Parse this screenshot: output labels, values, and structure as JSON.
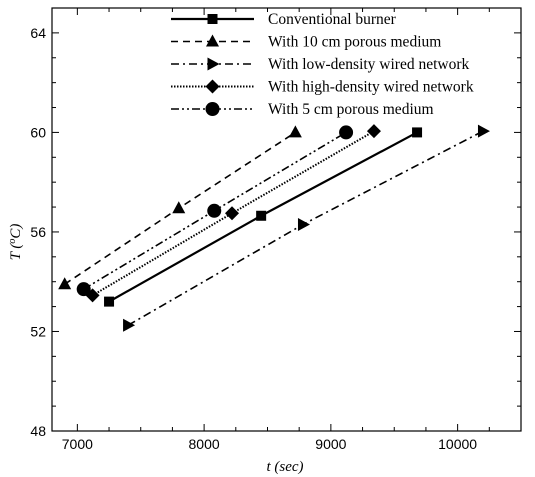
{
  "chart_data": {
    "type": "line",
    "title": "",
    "xlabel": "t (sec)",
    "ylabel_main": "T (",
    "ylabel_sup": "o",
    "ylabel_end": "C)",
    "xlim": [
      6800,
      10500
    ],
    "ylim": [
      48,
      65
    ],
    "xticks": [
      7000,
      8000,
      9000,
      10000
    ],
    "yticks": [
      48,
      52,
      56,
      60,
      64
    ],
    "grid": false,
    "legend_position": "top-center",
    "series": [
      {
        "name": "Conventional burner",
        "marker": "square",
        "dash": "none",
        "stroke_width": 2.2,
        "x": [
          7250,
          8450,
          9680
        ],
        "y": [
          53.2,
          56.65,
          60.0
        ]
      },
      {
        "name": "With 10 cm porous medium",
        "marker": "triangle",
        "dash": "7,5",
        "stroke_width": 1.6,
        "x": [
          6900,
          7800,
          8720
        ],
        "y": [
          53.9,
          56.95,
          60.0
        ]
      },
      {
        "name": "With low-density wired network",
        "marker": "triangle-right",
        "dash": "8,4,2,4",
        "stroke_width": 1.6,
        "x": [
          7400,
          8780,
          10200
        ],
        "y": [
          52.25,
          56.3,
          60.05
        ]
      },
      {
        "name": "With high-density wired network",
        "marker": "diamond",
        "dash": "1.5,1.5",
        "stroke_width": 2.0,
        "x": [
          7120,
          8220,
          9340
        ],
        "y": [
          53.45,
          56.75,
          60.05
        ]
      },
      {
        "name": "With 5 cm porous medium",
        "marker": "circle",
        "dash": "8,3,2,3,2,3",
        "stroke_width": 1.6,
        "x": [
          7050,
          8080,
          9120
        ],
        "y": [
          53.7,
          56.85,
          60.0
        ]
      }
    ]
  }
}
